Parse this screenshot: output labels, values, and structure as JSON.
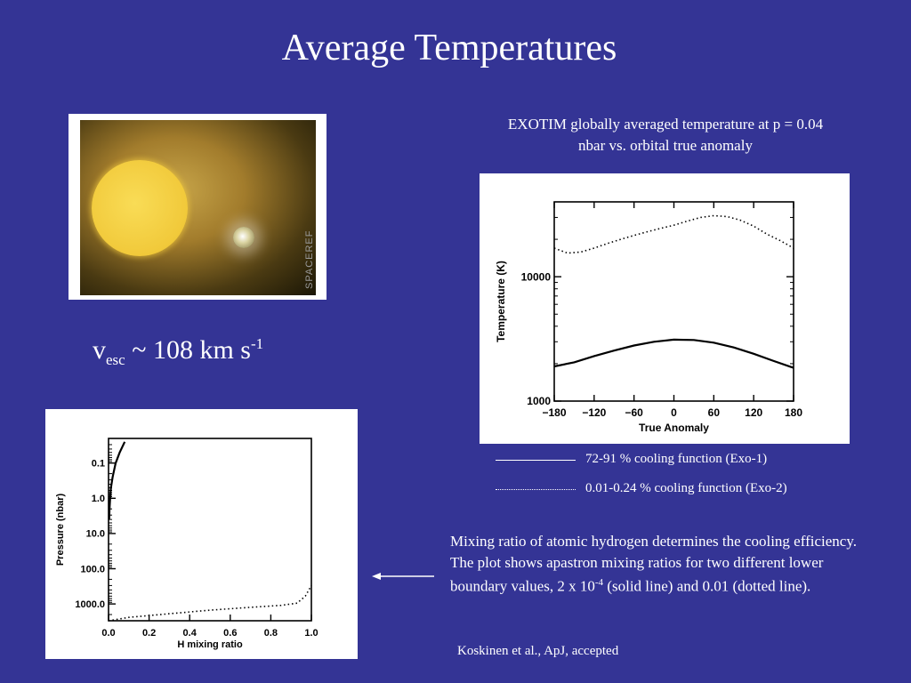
{
  "slide": {
    "title": "Average Temperatures",
    "image_watermark": "SPACEREF",
    "vesc": {
      "v": "v",
      "sub": "esc",
      "main": " ~ 108 km s",
      "sup": "-1"
    },
    "temp_caption_line1": "EXOTIM globally averaged temperature at p = 0.04",
    "temp_caption_line2": "nbar vs. orbital true anomaly",
    "legend": [
      {
        "label": "72-91 % cooling function (Exo-1)",
        "style": "solid"
      },
      {
        "label": "0.01-0.24 % cooling function (Exo-2)",
        "style": "dotted"
      }
    ],
    "mix_text": {
      "part1": "Mixing ratio of atomic hydrogen determines the cooling efficiency.  The plot shows apastron mixing ratios for two different lower boundary values, 2 x 10",
      "sup": "-4",
      "part2": " (solid line) and 0.01 (dotted line)."
    },
    "citation": "Koskinen et al., ApJ, accepted"
  },
  "chart_data": [
    {
      "type": "line",
      "xlabel": "True Anomaly",
      "ylabel": "Temperature (K)",
      "xlim": [
        -180,
        180
      ],
      "xticks": [
        -180,
        -120,
        -60,
        0,
        60,
        120,
        180
      ],
      "xtick_labels": [
        "−180",
        "−120",
        "−60",
        "0",
        "60",
        "120",
        "180"
      ],
      "ylim": [
        1000,
        40000
      ],
      "yscale": "log",
      "yticks": [
        1000,
        10000
      ],
      "ytick_labels": [
        "1000",
        "10000"
      ],
      "series": [
        {
          "style": "solid",
          "x": [
            -180,
            -150,
            -120,
            -90,
            -60,
            -30,
            0,
            30,
            60,
            90,
            120,
            150,
            180
          ],
          "y": [
            1900,
            2050,
            2300,
            2550,
            2800,
            3000,
            3120,
            3100,
            2950,
            2700,
            2400,
            2100,
            1850
          ]
        },
        {
          "style": "dotted",
          "x": [
            -180,
            -160,
            -140,
            -120,
            -100,
            -80,
            -60,
            -40,
            -20,
            0,
            20,
            40,
            60,
            80,
            100,
            120,
            140,
            160,
            180
          ],
          "y": [
            17000,
            15500,
            15800,
            17000,
            18500,
            20000,
            21500,
            23000,
            24500,
            26000,
            28000,
            30000,
            31000,
            30500,
            28500,
            25500,
            22000,
            19500,
            17000
          ]
        }
      ]
    },
    {
      "type": "line",
      "xlabel": "H mixing ratio",
      "ylabel": "Pressure (nbar)",
      "xlim": [
        0,
        1
      ],
      "xticks": [
        0,
        0.2,
        0.4,
        0.6,
        0.8,
        1.0
      ],
      "xtick_labels": [
        "0.0",
        "0.2",
        "0.4",
        "0.6",
        "0.8",
        "1.0"
      ],
      "ylim": [
        0.02,
        3000
      ],
      "yscale": "log",
      "yinverted": true,
      "yticks": [
        0.1,
        1,
        10,
        100,
        1000
      ],
      "ytick_labels": [
        "0.1",
        "1.0",
        "10.0",
        "100.0",
        "1000.0"
      ],
      "series": [
        {
          "style": "solid",
          "x": [
            0.003,
            0.005,
            0.008,
            0.012,
            0.02,
            0.035,
            0.055,
            0.08
          ],
          "y": [
            4.0,
            2.0,
            1.0,
            0.5,
            0.25,
            0.1,
            0.05,
            0.025
          ]
        },
        {
          "style": "dotted",
          "x": [
            0.0,
            0.1,
            0.3,
            0.5,
            0.7,
            0.85,
            0.93,
            0.97,
            1.0
          ],
          "y": [
            3000,
            2400,
            1900,
            1500,
            1250,
            1100,
            950,
            600,
            300
          ]
        }
      ]
    }
  ]
}
